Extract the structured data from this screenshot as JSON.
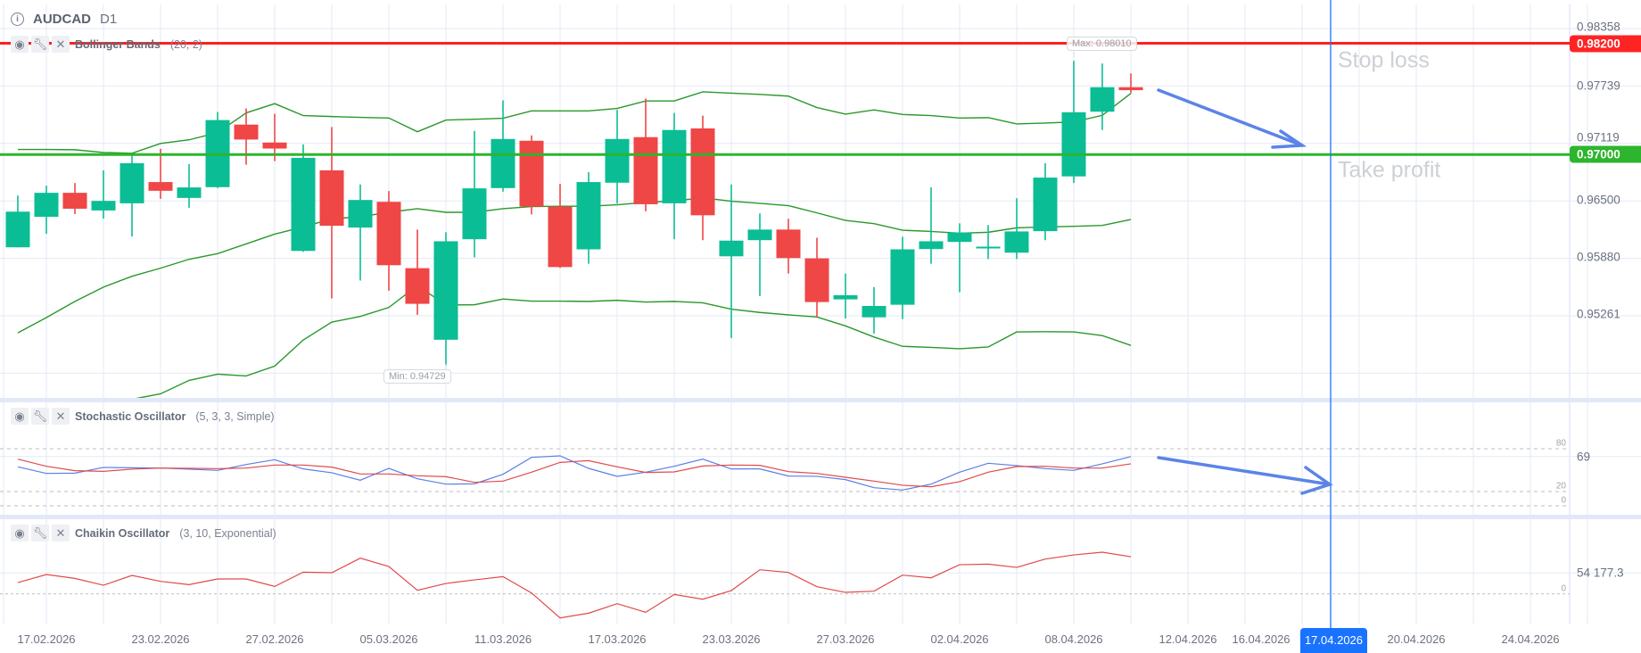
{
  "header": {
    "symbol": "AUDCAD",
    "timeframe": "D1",
    "info_icon": "info-icon"
  },
  "indicators": {
    "bollinger": {
      "name": "Bollinger Bands",
      "params": "(20, 2)"
    },
    "stochastic": {
      "name": "Stochastic Oscillator",
      "params": "(5, 3, 3, Simple)"
    },
    "chaikin": {
      "name": "Chaikin Oscillator",
      "params": "(3, 10, Exponential)"
    },
    "icons": {
      "visibility": "eye-icon",
      "settings": "wrench-icon",
      "remove": "close-icon"
    }
  },
  "annotations": {
    "stop_loss_label": "Stop loss",
    "take_profit_label": "Take profit",
    "stop_loss_tag": "0.98200",
    "take_profit_tag": "0.97000",
    "max_label": "Max: 0.98010",
    "min_label": "Min: 0.94729",
    "crosshair_date": "17.04.2026"
  },
  "colors": {
    "up": "#0bbd94",
    "down": "#ef4646",
    "bollinger": "#2a982a",
    "stop_loss": "#ff1f1f",
    "take_profit": "#2db52d",
    "stoch_k": "#5b7fe8",
    "stoch_d": "#e04a4a",
    "chaikin": "#e04a4a",
    "crosshair": "#1a73ff",
    "arrow": "#5b84e8"
  },
  "chart_data": [
    {
      "type": "candlestick",
      "title": "AUDCAD D1",
      "x_tick_labels": [
        "17.02.2026",
        "23.02.2026",
        "27.02.2026",
        "05.03.2026",
        "11.03.2026",
        "17.03.2026",
        "23.03.2026",
        "27.03.2026",
        "02.04.2026",
        "08.04.2026",
        "12.04.2026",
        "16.04.2026",
        "20.04.2026",
        "24.04.2026"
      ],
      "y_tick_labels": [
        "0.98358",
        "0.97739",
        "0.97119",
        "0.96500",
        "0.95880",
        "0.95261"
      ],
      "y_ticks": [
        0.98358,
        0.97739,
        0.97119,
        0.965,
        0.9588,
        0.95261
      ],
      "horizontal_levels": {
        "stop_loss": 0.982,
        "take_profit": 0.97
      },
      "max": 0.9801,
      "min": 0.94729,
      "ohlc": [
        [
          0.96001,
          0.96559,
          0.96001,
          0.96385
        ],
        [
          0.9633,
          0.96665,
          0.96146,
          0.96588
        ],
        [
          0.96588,
          0.96694,
          0.96359,
          0.96417
        ],
        [
          0.96398,
          0.9683,
          0.9631,
          0.96501
        ],
        [
          0.96475,
          0.97007,
          0.96117,
          0.96907
        ],
        [
          0.96704,
          0.97062,
          0.96523,
          0.9661
        ],
        [
          0.96533,
          0.96898,
          0.96427,
          0.96646
        ],
        [
          0.96649,
          0.97459,
          0.96639,
          0.97372
        ],
        [
          0.97323,
          0.97497,
          0.96891,
          0.97162
        ],
        [
          0.9713,
          0.97439,
          0.96929,
          0.97065
        ],
        [
          0.95962,
          0.9711,
          0.95952,
          0.96965
        ],
        [
          0.9683,
          0.97297,
          0.9545,
          0.96233
        ],
        [
          0.96214,
          0.96678,
          0.95643,
          0.96511
        ],
        [
          0.96491,
          0.96607,
          0.95534,
          0.95808
        ],
        [
          0.95776,
          0.96192,
          0.95273,
          0.95392
        ],
        [
          0.95005,
          0.96163,
          0.94729,
          0.96066
        ],
        [
          0.96088,
          0.97255,
          0.95892,
          0.96636
        ],
        [
          0.96639,
          0.97584,
          0.96601,
          0.97168
        ],
        [
          0.97149,
          0.97207,
          0.96356,
          0.9644
        ],
        [
          0.9644,
          0.96685,
          0.95779,
          0.95788
        ],
        [
          0.95979,
          0.96811,
          0.95824,
          0.96704
        ],
        [
          0.96697,
          0.97481,
          0.96472,
          0.97168
        ],
        [
          0.97188,
          0.97604,
          0.96388,
          0.96465
        ],
        [
          0.96475,
          0.97449,
          0.96088,
          0.97265
        ],
        [
          0.97282,
          0.9742,
          0.96078,
          0.96346
        ],
        [
          0.95904,
          0.96678,
          0.95024,
          0.96073
        ],
        [
          0.96078,
          0.96366,
          0.95476,
          0.96192
        ],
        [
          0.96192,
          0.96308,
          0.95718,
          0.95885
        ],
        [
          0.95882,
          0.96104,
          0.9525,
          0.95411
        ],
        [
          0.9544,
          0.95718,
          0.95234,
          0.95485
        ],
        [
          0.95247,
          0.95572,
          0.95072,
          0.95369
        ],
        [
          0.95382,
          0.96114,
          0.95227,
          0.95979
        ],
        [
          0.95982,
          0.96646,
          0.95824,
          0.96066
        ],
        [
          0.96059,
          0.96259,
          0.95517,
          0.9616
        ],
        [
          0.96005,
          0.9624,
          0.95875,
          0.96008
        ],
        [
          0.95943,
          0.9653,
          0.95875,
          0.96172
        ],
        [
          0.96175,
          0.96907,
          0.96078,
          0.96752
        ],
        [
          0.96765,
          0.9801,
          0.96694,
          0.97456
        ],
        [
          0.97462,
          0.97981,
          0.97265,
          0.97726
        ],
        [
          0.97726,
          0.97874,
          0.97662,
          0.97694
        ]
      ],
      "bollinger": {
        "upper": [
          0.97055,
          0.97055,
          0.97052,
          0.97023,
          0.97014,
          0.9712,
          0.97159,
          0.97236,
          0.97449,
          0.97549,
          0.9742,
          0.9741,
          0.97401,
          0.97394,
          0.97246,
          0.97372,
          0.97381,
          0.97391,
          0.97471,
          0.97471,
          0.97471,
          0.97497,
          0.97578,
          0.97578,
          0.97676,
          0.97662,
          0.97649,
          0.9763,
          0.97507,
          0.97436,
          0.97481,
          0.97432,
          0.9742,
          0.97394,
          0.97398,
          0.9733,
          0.9734,
          0.97352,
          0.97423,
          0.97659
        ],
        "middle": [
          0.95079,
          0.95244,
          0.95418,
          0.95572,
          0.95689,
          0.95776,
          0.95872,
          0.95933,
          0.96037,
          0.96143,
          0.9622,
          0.96308,
          0.9633,
          0.96378,
          0.96417,
          0.96378,
          0.96378,
          0.96417,
          0.9644,
          0.96443,
          0.96443,
          0.96459,
          0.96485,
          0.96501,
          0.96535,
          0.96498,
          0.96475,
          0.9645,
          0.96372,
          0.96291,
          0.96256,
          0.96185,
          0.96172,
          0.96153,
          0.96163,
          0.96211,
          0.9622,
          0.96227,
          0.96237,
          0.96301
        ],
        "lower": [
          0.93103,
          0.93433,
          0.93784,
          0.94121,
          0.94364,
          0.94422,
          0.94567,
          0.94634,
          0.94615,
          0.94721,
          0.95002,
          0.95195,
          0.95256,
          0.95353,
          0.95589,
          0.95379,
          0.95382,
          0.95444,
          0.95421,
          0.95421,
          0.95418,
          0.9543,
          0.95411,
          0.95418,
          0.95403,
          0.95334,
          0.95299,
          0.95273,
          0.9525,
          0.95154,
          0.95034,
          0.94934,
          0.94922,
          0.94908,
          0.94927,
          0.95089,
          0.95092,
          0.95089,
          0.9505,
          0.94944
        ]
      }
    },
    {
      "type": "line",
      "title": "Stochastic Oscillator (5, 3, 3, Simple)",
      "ylim": [
        0,
        100
      ],
      "levels": [
        {
          "value": 80,
          "label": "80"
        },
        {
          "value": 20,
          "label": "20"
        },
        {
          "value": 0,
          "label": "0"
        }
      ],
      "last_value_label": "69",
      "series": [
        {
          "name": "%K",
          "values": [
            54.6,
            45.4,
            45.8,
            53.8,
            53.3,
            52.9,
            51.3,
            49.6,
            57.9,
            64.6,
            51.7,
            46.3,
            35.8,
            52.5,
            37.9,
            30.4,
            30.8,
            44.2,
            67.9,
            70.0,
            52.5,
            41.3,
            47.1,
            55.4,
            65.4,
            51.7,
            51.7,
            41.7,
            41.3,
            36.7,
            25.4,
            22.1,
            30.4,
            47.1,
            59.6,
            56.3,
            52.1,
            49.6,
            58.8,
            69.0
          ]
        },
        {
          "name": "%D",
          "values": [
            65.4,
            55.4,
            49.2,
            48.3,
            51.3,
            52.9,
            52.5,
            52.1,
            52.9,
            57.1,
            57.1,
            54.2,
            44.6,
            44.6,
            42.1,
            40.8,
            32.9,
            34.6,
            47.1,
            60.8,
            63.3,
            54.6,
            46.7,
            47.5,
            55.8,
            57.1,
            56.7,
            47.9,
            45.4,
            40.0,
            34.6,
            28.8,
            26.7,
            33.8,
            47.1,
            55.0,
            55.4,
            52.9,
            52.9,
            58.8
          ]
        }
      ]
    },
    {
      "type": "line",
      "title": "Chaikin Oscillator (3, 10, Exponential)",
      "levels": [
        {
          "value": 0,
          "label": "0"
        }
      ],
      "tick_label": "54 177.3",
      "tick_value": 54177.3,
      "series": [
        {
          "name": "Chaikin",
          "values": [
            29325,
            50160,
            40128,
            22380,
            47845,
            32411,
            23923,
            38585,
            38585,
            19293,
            56334,
            54791,
            92604,
            70996,
            9260,
            27010,
            36270,
            44759,
            2315,
            -62508,
            -50161,
            -25466,
            -47845,
            -1543,
            -13891,
            8489,
            62508,
            55562,
            18521,
            3859,
            6945,
            48617,
            41672,
            75627,
            77170,
            68681,
            90289,
            101093,
            108038,
            96463
          ]
        }
      ]
    }
  ]
}
